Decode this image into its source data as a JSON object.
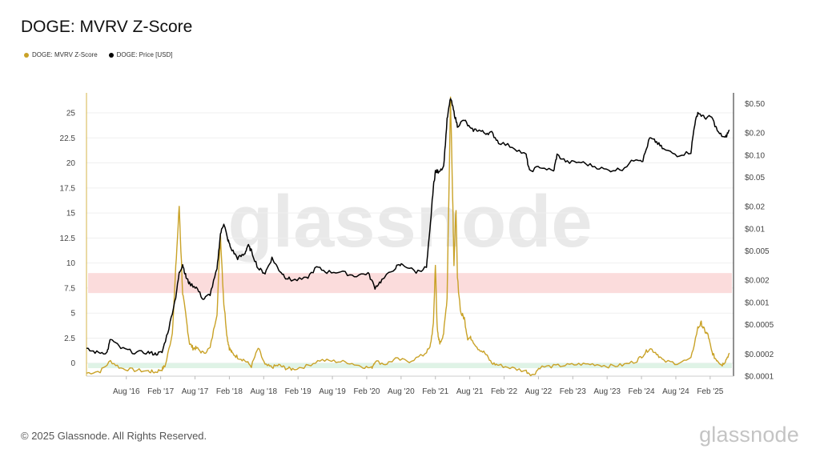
{
  "header": {
    "title": "DOGE: MVRV Z-Score"
  },
  "legend": [
    {
      "label": "DOGE: MVRV Z-Score",
      "color": "#c9a227"
    },
    {
      "label": "DOGE: Price [USD]",
      "color": "#000000"
    }
  ],
  "watermark": "glassnode",
  "footer": {
    "copyright": "© 2025 Glassnode. All Rights Reserved.",
    "brand": "glassnode"
  },
  "chart_data": {
    "type": "line",
    "x_axis": {
      "ticks": [
        "Aug '16",
        "Feb '17",
        "Aug '17",
        "Feb '18",
        "Aug '18",
        "Feb '19",
        "Aug '19",
        "Feb '20",
        "Aug '20",
        "Feb '21",
        "Aug '21",
        "Feb '22",
        "Aug '22",
        "Feb '23",
        "Aug '23",
        "Feb '24",
        "Aug '24",
        "Feb '25"
      ],
      "range": [
        "2016-01",
        "2025-05"
      ]
    },
    "y_left": {
      "ticks": [
        0,
        2.5,
        5,
        7.5,
        10,
        12.5,
        15,
        17.5,
        20,
        22.5,
        25
      ],
      "tick_labels": [
        "0",
        "2.5",
        "5",
        "7.5",
        "10",
        "12.5",
        "15",
        "17.5",
        "20",
        "22.5",
        "25"
      ],
      "range": [
        -1.3,
        27
      ],
      "label": ""
    },
    "y_right": {
      "scale": "log",
      "ticks": [
        0.0001,
        0.0002,
        0.0005,
        0.001,
        0.002,
        0.005,
        0.01,
        0.02,
        0.05,
        0.1,
        0.2,
        0.5
      ],
      "tick_labels": [
        "$0.0001",
        "$0.0002",
        "$0.0005",
        "$0.001",
        "$0.002",
        "$0.005",
        "$0.01",
        "$0.02",
        "$0.05",
        "$0.10",
        "$0.20",
        "$0.50"
      ],
      "range": [
        0.0001,
        0.7
      ],
      "label": ""
    },
    "bands": [
      {
        "axis": "left",
        "from": 7,
        "to": 9,
        "color": "#fbdcdc"
      },
      {
        "axis": "left",
        "from": -0.5,
        "to": 0,
        "color": "#dff3e6"
      }
    ],
    "series": [
      {
        "name": "DOGE: MVRV Z-Score",
        "axis": "left",
        "color": "#c9a227",
        "x": [
          2016.0,
          2016.2,
          2016.35,
          2016.5,
          2016.7,
          2016.9,
          2017.0,
          2017.1,
          2017.15,
          2017.25,
          2017.3,
          2017.35,
          2017.4,
          2017.45,
          2017.5,
          2017.55,
          2017.6,
          2017.7,
          2017.8,
          2017.9,
          2017.95,
          2018.0,
          2018.05,
          2018.08,
          2018.12,
          2018.2,
          2018.3,
          2018.4,
          2018.5,
          2018.6,
          2018.7,
          2018.8,
          2018.9,
          2019.0,
          2019.2,
          2019.4,
          2019.6,
          2019.8,
          2020.0,
          2020.15,
          2020.2,
          2020.35,
          2020.5,
          2020.7,
          2020.9,
          2021.0,
          2021.05,
          2021.08,
          2021.1,
          2021.12,
          2021.15,
          2021.2,
          2021.25,
          2021.3,
          2021.33,
          2021.35,
          2021.38,
          2021.4,
          2021.45,
          2021.5,
          2021.55,
          2021.6,
          2021.7,
          2021.8,
          2021.9,
          2022.0,
          2022.2,
          2022.4,
          2022.5,
          2022.6,
          2022.8,
          2023.0,
          2023.2,
          2023.4,
          2023.6,
          2023.8,
          2024.0,
          2024.1,
          2024.2,
          2024.3,
          2024.4,
          2024.6,
          2024.8,
          2024.9,
          2024.95,
          2025.0,
          2025.05,
          2025.1,
          2025.15,
          2025.2,
          2025.25,
          2025.3,
          2025.36
        ],
        "values": [
          -1.0,
          -0.8,
          0.2,
          -0.5,
          -0.7,
          -0.8,
          -0.9,
          -0.6,
          -0.2,
          3.0,
          9.5,
          15.7,
          7.0,
          4.5,
          2.0,
          1.5,
          1.5,
          1.0,
          1.5,
          5.0,
          12.8,
          6.0,
          2.5,
          1.5,
          1.0,
          0.6,
          0.3,
          -0.3,
          1.5,
          -0.2,
          -0.4,
          -0.2,
          -0.5,
          -0.6,
          -0.3,
          0.3,
          0.2,
          0.1,
          -0.3,
          -0.5,
          0.2,
          -0.1,
          0.4,
          0.2,
          0.8,
          1.5,
          3.8,
          10.0,
          4.5,
          2.5,
          2.0,
          3.0,
          6.5,
          26.5,
          17.0,
          10.0,
          15.5,
          8.5,
          5.0,
          4.5,
          2.5,
          2.5,
          1.5,
          1.0,
          0.0,
          -0.2,
          -0.5,
          -0.8,
          -1.2,
          -0.4,
          -0.3,
          -0.2,
          -0.1,
          -0.1,
          -0.3,
          -0.2,
          0.2,
          0.8,
          1.5,
          1.0,
          0.2,
          0.0,
          0.4,
          3.5,
          4.0,
          3.2,
          2.8,
          1.2,
          0.5,
          0.2,
          -0.2,
          0.2,
          1.0
        ]
      },
      {
        "name": "DOGE: Price [USD]",
        "axis": "right",
        "color": "#000000",
        "x": [
          2016.0,
          2016.15,
          2016.3,
          2016.35,
          2016.5,
          2016.7,
          2016.9,
          2017.0,
          2017.1,
          2017.2,
          2017.3,
          2017.35,
          2017.4,
          2017.45,
          2017.5,
          2017.6,
          2017.7,
          2017.8,
          2017.9,
          2017.95,
          2018.0,
          2018.05,
          2018.1,
          2018.2,
          2018.3,
          2018.35,
          2018.4,
          2018.5,
          2018.6,
          2018.7,
          2018.8,
          2018.9,
          2019.0,
          2019.2,
          2019.35,
          2019.5,
          2019.7,
          2019.9,
          2020.1,
          2020.2,
          2020.3,
          2020.5,
          2020.6,
          2020.8,
          2020.95,
          2021.0,
          2021.05,
          2021.08,
          2021.12,
          2021.2,
          2021.25,
          2021.3,
          2021.35,
          2021.4,
          2021.5,
          2021.6,
          2021.7,
          2021.8,
          2021.9,
          2022.0,
          2022.2,
          2022.4,
          2022.45,
          2022.6,
          2022.8,
          2022.85,
          2023.0,
          2023.2,
          2023.4,
          2023.6,
          2023.8,
          2024.0,
          2024.1,
          2024.2,
          2024.3,
          2024.4,
          2024.6,
          2024.8,
          2024.85,
          2024.9,
          2025.0,
          2025.1,
          2025.2,
          2025.3,
          2025.36
        ],
        "values": [
          0.00023,
          0.00021,
          0.00021,
          0.00032,
          0.00024,
          0.00021,
          0.00021,
          0.0002,
          0.00021,
          0.00045,
          0.0012,
          0.0025,
          0.0033,
          0.0022,
          0.0018,
          0.0016,
          0.0011,
          0.0013,
          0.0028,
          0.0085,
          0.012,
          0.0075,
          0.0055,
          0.004,
          0.0045,
          0.006,
          0.005,
          0.0029,
          0.0025,
          0.004,
          0.0028,
          0.0022,
          0.002,
          0.0021,
          0.003,
          0.0026,
          0.0026,
          0.0023,
          0.0025,
          0.0016,
          0.002,
          0.003,
          0.0033,
          0.0026,
          0.003,
          0.0095,
          0.037,
          0.06,
          0.06,
          0.07,
          0.3,
          0.6,
          0.38,
          0.25,
          0.3,
          0.22,
          0.22,
          0.2,
          0.2,
          0.15,
          0.13,
          0.1,
          0.06,
          0.07,
          0.06,
          0.1,
          0.08,
          0.08,
          0.07,
          0.062,
          0.065,
          0.09,
          0.085,
          0.17,
          0.15,
          0.12,
          0.1,
          0.11,
          0.25,
          0.38,
          0.32,
          0.33,
          0.2,
          0.17,
          0.22
        ]
      }
    ]
  }
}
